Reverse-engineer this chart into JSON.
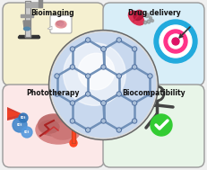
{
  "bg_color": "#f0f0f0",
  "panel_colors": {
    "tl": "#f5f0d0",
    "tr": "#d8eef8",
    "bl": "#fce8e8",
    "br": "#e8f5e8"
  },
  "labels": {
    "tl": "Bioimaging",
    "tr": "Drug delivery",
    "bl": "Phototherapy",
    "br": "Biocompatibility"
  },
  "sphere_color": "#c8d8ee",
  "sphere_highlight": "#e8f2ff",
  "polymer_line_color": "#7090b8",
  "polymer_node_color": "#5070a0",
  "figsize": [
    2.31,
    1.89
  ],
  "dpi": 100
}
